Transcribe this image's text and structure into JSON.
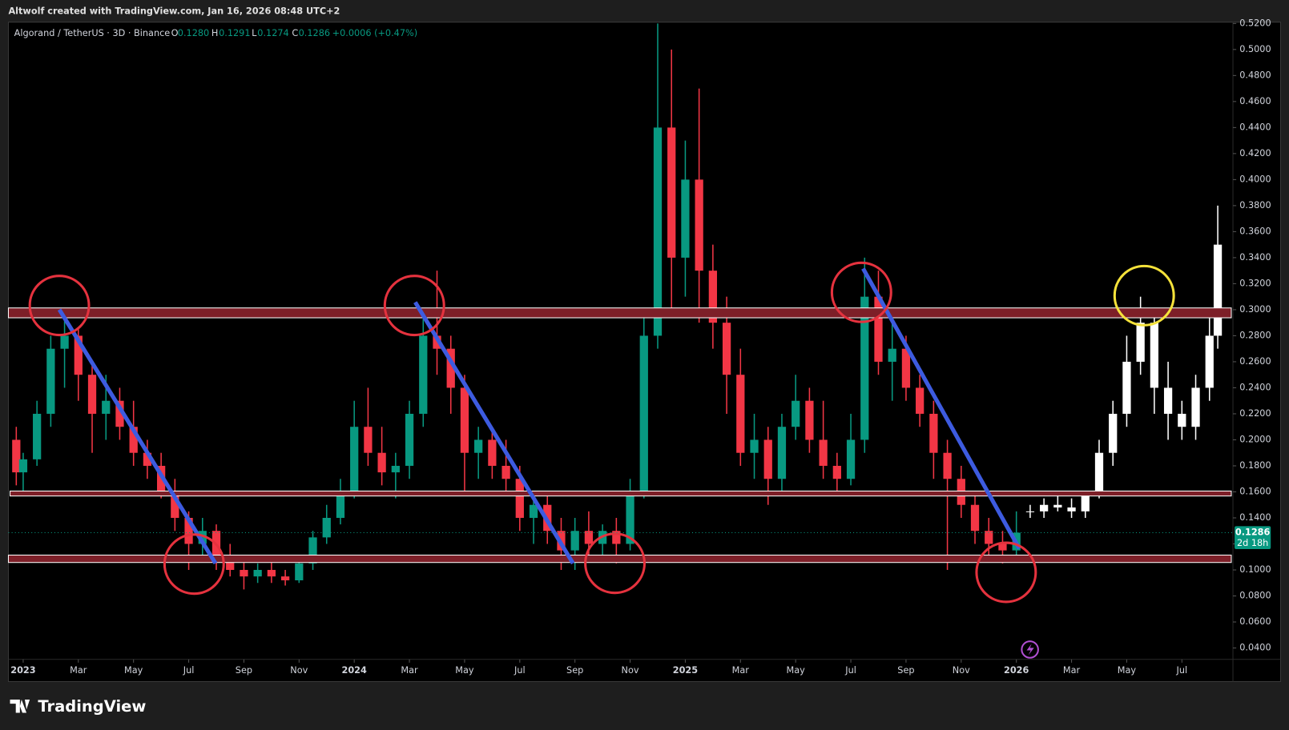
{
  "header": "Altwolf created with TradingView.com, Jan 16, 2026 08:48 UTC+2",
  "branding": "TradingView",
  "chart_data": {
    "type": "candlestick",
    "title": "Algorand / TetherUS · 3D · Binance",
    "ohlc_legend": {
      "open_label": "O",
      "open": "0.1280",
      "high_label": "H",
      "high": "0.1291",
      "low_label": "L",
      "low": "0.1274",
      "close_label": "C",
      "close": "0.1286",
      "change": "+0.0006 (+0.47%)"
    },
    "last_price": {
      "value": 0.1286,
      "countdown": "2d 18h"
    },
    "xlim": [
      -0.536,
      43.85
    ],
    "ylim": [
      0.0142,
      0.521
    ],
    "xticks": [
      {
        "value": 0,
        "label": "2023"
      },
      {
        "value": 2,
        "label": "Mar"
      },
      {
        "value": 4,
        "label": "May"
      },
      {
        "value": 6,
        "label": "Jul"
      },
      {
        "value": 8,
        "label": "Sep"
      },
      {
        "value": 10,
        "label": "Nov"
      },
      {
        "value": 12,
        "label": "2024"
      },
      {
        "value": 14,
        "label": "Mar"
      },
      {
        "value": 16,
        "label": "May"
      },
      {
        "value": 18,
        "label": "Jul"
      },
      {
        "value": 20,
        "label": "Sep"
      },
      {
        "value": 22,
        "label": "Nov"
      },
      {
        "value": 24,
        "label": "2025"
      },
      {
        "value": 26,
        "label": "Mar"
      },
      {
        "value": 28,
        "label": "May"
      },
      {
        "value": 30,
        "label": "Jul"
      },
      {
        "value": 32,
        "label": "Sep"
      },
      {
        "value": 34,
        "label": "Nov"
      },
      {
        "value": 36,
        "label": "2026"
      },
      {
        "value": 38,
        "label": "Mar"
      },
      {
        "value": 40,
        "label": "May"
      },
      {
        "value": 42,
        "label": "Jul"
      }
    ],
    "yticks": [
      {
        "value": 0.04,
        "label": "0.0400"
      },
      {
        "value": 0.06,
        "label": "0.0600"
      },
      {
        "value": 0.08,
        "label": "0.0800"
      },
      {
        "value": 0.1,
        "label": "0.1000"
      },
      {
        "value": 0.12,
        "label": "0.1200"
      },
      {
        "value": 0.14,
        "label": "0.1400"
      },
      {
        "value": 0.16,
        "label": "0.1600"
      },
      {
        "value": 0.18,
        "label": "0.1800"
      },
      {
        "value": 0.2,
        "label": "0.2000"
      },
      {
        "value": 0.22,
        "label": "0.2200"
      },
      {
        "value": 0.24,
        "label": "0.2400"
      },
      {
        "value": 0.26,
        "label": "0.2600"
      },
      {
        "value": 0.28,
        "label": "0.2800"
      },
      {
        "value": 0.3,
        "label": "0.3000"
      },
      {
        "value": 0.32,
        "label": "0.3200"
      },
      {
        "value": 0.34,
        "label": "0.3400"
      },
      {
        "value": 0.36,
        "label": "0.3600"
      },
      {
        "value": 0.38,
        "label": "0.3800"
      },
      {
        "value": 0.4,
        "label": "0.4000"
      },
      {
        "value": 0.42,
        "label": "0.4200"
      },
      {
        "value": 0.44,
        "label": "0.4400"
      },
      {
        "value": 0.46,
        "label": "0.4600"
      },
      {
        "value": 0.48,
        "label": "0.4800"
      },
      {
        "value": 0.5,
        "label": "0.5000"
      },
      {
        "value": 0.52,
        "label": "0.5200"
      }
    ],
    "series": [
      {
        "up_color": "#089981",
        "down_color": "#f23645",
        "x": [
          -0.25,
          0,
          0.5,
          1,
          1.5,
          2,
          2.5,
          3,
          3.5,
          4,
          4.5,
          5,
          5.5,
          6,
          6.5,
          7,
          7.5,
          8,
          8.5,
          9,
          9.5,
          10,
          10.5,
          11,
          11.5,
          12,
          12.5,
          13,
          13.5,
          14,
          14.5,
          15,
          15.5,
          16,
          16.5,
          17,
          17.5,
          18,
          18.5,
          19,
          19.5,
          20,
          20.5,
          21,
          21.5,
          22,
          22.5,
          23,
          23.5,
          24,
          24.5,
          25,
          25.5,
          26,
          26.5,
          27,
          27.5,
          28,
          28.5,
          29,
          29.5,
          30,
          30.5,
          31,
          31.5,
          32,
          32.5,
          33,
          33.5,
          34,
          34.5,
          35,
          35.5,
          36
        ],
        "values": [
          [
            0.2,
            0.21,
            0.165,
            0.175
          ],
          [
            0.175,
            0.19,
            0.16,
            0.185
          ],
          [
            0.185,
            0.23,
            0.18,
            0.22
          ],
          [
            0.22,
            0.28,
            0.21,
            0.27
          ],
          [
            0.27,
            0.3,
            0.24,
            0.28
          ],
          [
            0.28,
            0.285,
            0.23,
            0.25
          ],
          [
            0.25,
            0.26,
            0.19,
            0.22
          ],
          [
            0.22,
            0.25,
            0.2,
            0.23
          ],
          [
            0.23,
            0.24,
            0.2,
            0.21
          ],
          [
            0.21,
            0.23,
            0.18,
            0.19
          ],
          [
            0.19,
            0.2,
            0.17,
            0.18
          ],
          [
            0.18,
            0.19,
            0.155,
            0.16
          ],
          [
            0.16,
            0.17,
            0.13,
            0.14
          ],
          [
            0.14,
            0.145,
            0.1,
            0.12
          ],
          [
            0.12,
            0.14,
            0.11,
            0.13
          ],
          [
            0.13,
            0.135,
            0.1,
            0.11
          ],
          [
            0.11,
            0.12,
            0.095,
            0.1
          ],
          [
            0.1,
            0.11,
            0.085,
            0.095
          ],
          [
            0.095,
            0.105,
            0.09,
            0.1
          ],
          [
            0.1,
            0.11,
            0.09,
            0.095
          ],
          [
            0.095,
            0.1,
            0.088,
            0.092
          ],
          [
            0.092,
            0.11,
            0.09,
            0.105
          ],
          [
            0.105,
            0.13,
            0.1,
            0.125
          ],
          [
            0.125,
            0.15,
            0.12,
            0.14
          ],
          [
            0.14,
            0.17,
            0.135,
            0.16
          ],
          [
            0.16,
            0.23,
            0.155,
            0.21
          ],
          [
            0.21,
            0.24,
            0.18,
            0.19
          ],
          [
            0.19,
            0.21,
            0.165,
            0.175
          ],
          [
            0.175,
            0.19,
            0.155,
            0.18
          ],
          [
            0.18,
            0.23,
            0.17,
            0.22
          ],
          [
            0.22,
            0.3,
            0.21,
            0.28
          ],
          [
            0.28,
            0.33,
            0.25,
            0.27
          ],
          [
            0.27,
            0.28,
            0.22,
            0.24
          ],
          [
            0.24,
            0.25,
            0.16,
            0.19
          ],
          [
            0.19,
            0.21,
            0.17,
            0.2
          ],
          [
            0.2,
            0.21,
            0.17,
            0.18
          ],
          [
            0.18,
            0.2,
            0.16,
            0.17
          ],
          [
            0.17,
            0.18,
            0.13,
            0.14
          ],
          [
            0.14,
            0.16,
            0.12,
            0.15
          ],
          [
            0.15,
            0.16,
            0.12,
            0.13
          ],
          [
            0.13,
            0.14,
            0.1,
            0.115
          ],
          [
            0.115,
            0.14,
            0.1,
            0.13
          ],
          [
            0.13,
            0.145,
            0.11,
            0.12
          ],
          [
            0.12,
            0.135,
            0.11,
            0.13
          ],
          [
            0.13,
            0.14,
            0.105,
            0.12
          ],
          [
            0.12,
            0.17,
            0.115,
            0.16
          ],
          [
            0.16,
            0.3,
            0.155,
            0.28
          ],
          [
            0.28,
            0.52,
            0.27,
            0.44
          ],
          [
            0.44,
            0.5,
            0.3,
            0.34
          ],
          [
            0.34,
            0.43,
            0.31,
            0.4
          ],
          [
            0.4,
            0.47,
            0.29,
            0.33
          ],
          [
            0.33,
            0.35,
            0.27,
            0.29
          ],
          [
            0.29,
            0.31,
            0.22,
            0.25
          ],
          [
            0.25,
            0.27,
            0.18,
            0.19
          ],
          [
            0.19,
            0.22,
            0.17,
            0.2
          ],
          [
            0.2,
            0.21,
            0.15,
            0.17
          ],
          [
            0.17,
            0.22,
            0.16,
            0.21
          ],
          [
            0.21,
            0.25,
            0.2,
            0.23
          ],
          [
            0.23,
            0.24,
            0.19,
            0.2
          ],
          [
            0.2,
            0.23,
            0.17,
            0.18
          ],
          [
            0.18,
            0.19,
            0.16,
            0.17
          ],
          [
            0.17,
            0.22,
            0.165,
            0.2
          ],
          [
            0.2,
            0.34,
            0.19,
            0.31
          ],
          [
            0.31,
            0.33,
            0.25,
            0.26
          ],
          [
            0.26,
            0.29,
            0.23,
            0.27
          ],
          [
            0.27,
            0.28,
            0.23,
            0.24
          ],
          [
            0.24,
            0.25,
            0.21,
            0.22
          ],
          [
            0.22,
            0.23,
            0.17,
            0.19
          ],
          [
            0.19,
            0.2,
            0.1,
            0.17
          ],
          [
            0.17,
            0.18,
            0.14,
            0.15
          ],
          [
            0.15,
            0.16,
            0.12,
            0.13
          ],
          [
            0.13,
            0.14,
            0.11,
            0.12
          ],
          [
            0.12,
            0.13,
            0.105,
            0.115
          ],
          [
            0.115,
            0.145,
            0.11,
            0.1286
          ]
        ]
      },
      {
        "color": "#ffffff",
        "x": [
          36.5,
          37,
          37.5,
          38,
          38.5,
          39,
          39.5,
          40,
          40.5,
          41,
          41.5,
          42,
          42.5,
          43,
          43.3
        ],
        "values": [
          [
            0.145,
            0.15,
            0.14,
            0.145
          ],
          [
            0.145,
            0.155,
            0.14,
            0.15
          ],
          [
            0.15,
            0.16,
            0.145,
            0.148
          ],
          [
            0.148,
            0.155,
            0.14,
            0.145
          ],
          [
            0.145,
            0.16,
            0.14,
            0.158
          ],
          [
            0.158,
            0.2,
            0.155,
            0.19
          ],
          [
            0.19,
            0.23,
            0.18,
            0.22
          ],
          [
            0.22,
            0.28,
            0.21,
            0.26
          ],
          [
            0.26,
            0.31,
            0.25,
            0.29
          ],
          [
            0.29,
            0.3,
            0.22,
            0.24
          ],
          [
            0.24,
            0.26,
            0.2,
            0.22
          ],
          [
            0.22,
            0.23,
            0.2,
            0.21
          ],
          [
            0.21,
            0.25,
            0.2,
            0.24
          ],
          [
            0.24,
            0.3,
            0.23,
            0.28
          ],
          [
            0.28,
            0.38,
            0.27,
            0.35
          ]
        ]
      }
    ]
  }
}
